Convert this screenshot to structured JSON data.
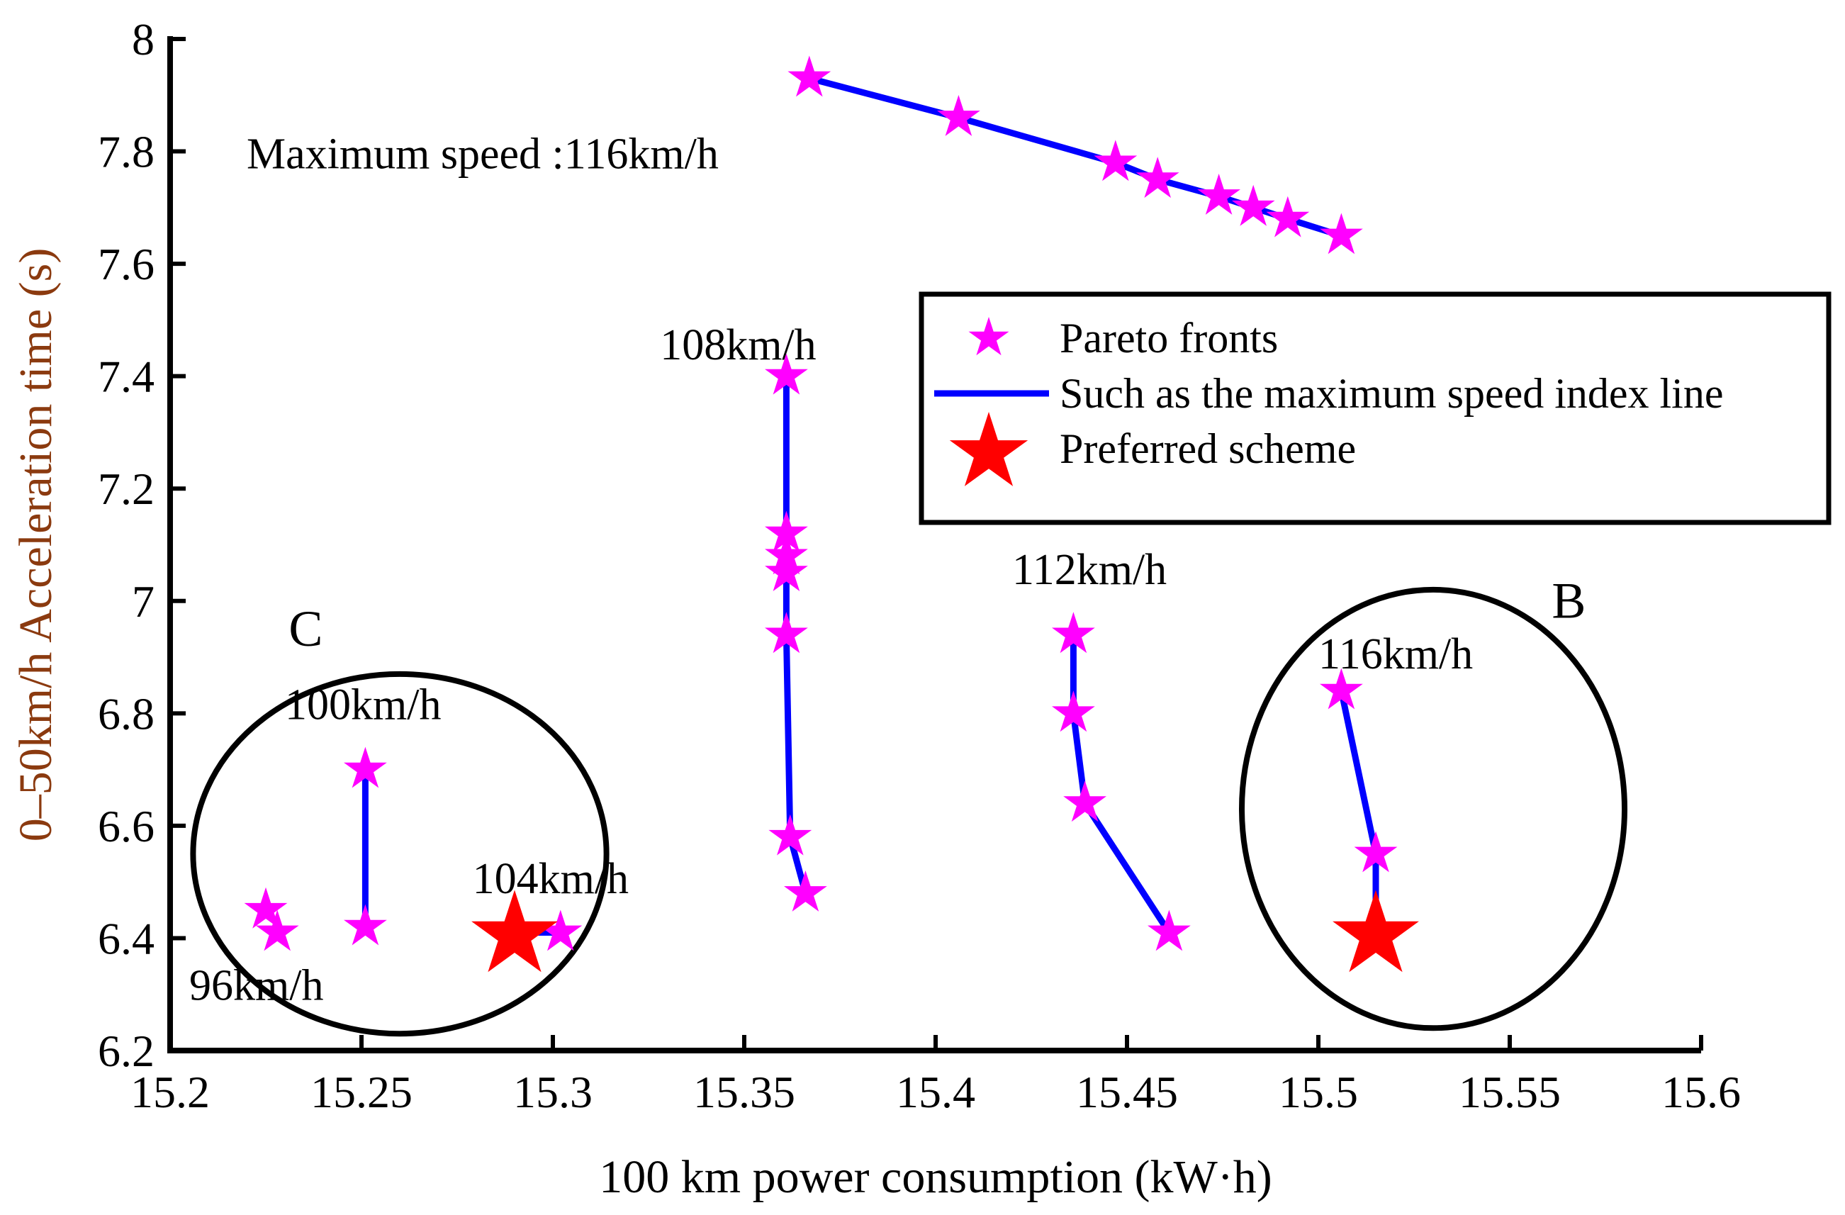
{
  "chart_data": {
    "type": "scatter",
    "title": "",
    "xlabel": "100 km power consumption (kW·h)",
    "ylabel": "0–50km/h Acceleration time (s)",
    "xlim": [
      15.2,
      15.6
    ],
    "ylim": [
      6.2,
      8.0
    ],
    "x_ticks": [
      15.2,
      15.25,
      15.3,
      15.35,
      15.4,
      15.45,
      15.5,
      15.55,
      15.6
    ],
    "x_tick_labels": [
      "15.2",
      "15.25",
      "15.3",
      "15.35",
      "15.4",
      "15.45",
      "15.5",
      "15.55",
      "15.6"
    ],
    "y_ticks": [
      6.2,
      6.4,
      6.6,
      6.8,
      7.0,
      7.2,
      7.4,
      7.6,
      7.8,
      8.0
    ],
    "y_tick_labels": [
      "6.2",
      "6.4",
      "6.6",
      "6.8",
      "7",
      "7.2",
      "7.4",
      "7.6",
      "7.8",
      "8"
    ],
    "series": [
      {
        "name": "96km/h",
        "label": "96km/h",
        "label_at": [
          15.205,
          6.29
        ],
        "line": false,
        "points": [
          [
            15.225,
            6.45
          ],
          [
            15.228,
            6.41
          ]
        ]
      },
      {
        "name": "100km/h",
        "label": "100km/h",
        "label_at": [
          15.23,
          6.79
        ],
        "line": true,
        "points": [
          [
            15.251,
            6.7
          ],
          [
            15.251,
            6.42
          ]
        ]
      },
      {
        "name": "104km/h",
        "label": "104km/h",
        "label_at": [
          15.279,
          6.48
        ],
        "line": true,
        "points": [
          [
            15.29,
            6.41
          ],
          [
            15.302,
            6.41
          ]
        ]
      },
      {
        "name": "108km/h",
        "label": "108km/h",
        "label_at": [
          15.328,
          7.43
        ],
        "line": true,
        "points": [
          [
            15.361,
            7.4
          ],
          [
            15.361,
            7.12
          ],
          [
            15.361,
            7.08
          ],
          [
            15.361,
            7.05
          ],
          [
            15.361,
            6.94
          ],
          [
            15.362,
            6.58
          ],
          [
            15.366,
            6.48
          ]
        ]
      },
      {
        "name": "112km/h",
        "label": "112km/h",
        "label_at": [
          15.42,
          7.03
        ],
        "line": true,
        "points": [
          [
            15.436,
            6.94
          ],
          [
            15.436,
            6.8
          ],
          [
            15.439,
            6.64
          ],
          [
            15.461,
            6.41
          ]
        ]
      },
      {
        "name": "116km/h (low)",
        "label": "116km/h",
        "label_at": [
          15.5,
          6.88
        ],
        "line": true,
        "points": [
          [
            15.506,
            6.84
          ],
          [
            15.515,
            6.55
          ],
          [
            15.515,
            6.41
          ]
        ]
      },
      {
        "name": "116km/h (top)",
        "label": "",
        "label_at": null,
        "line": true,
        "points": [
          [
            15.367,
            7.93
          ],
          [
            15.406,
            7.86
          ],
          [
            15.447,
            7.78
          ],
          [
            15.458,
            7.75
          ],
          [
            15.474,
            7.72
          ],
          [
            15.483,
            7.7
          ],
          [
            15.492,
            7.68
          ],
          [
            15.506,
            7.65
          ]
        ]
      }
    ],
    "preferred_schemes": [
      [
        15.29,
        6.41
      ],
      [
        15.515,
        6.41
      ]
    ],
    "annotations": [
      {
        "text": "Maximum speed :116km/h",
        "at": [
          15.22,
          7.77
        ]
      }
    ],
    "regions": [
      {
        "label": "C",
        "center": [
          15.26,
          6.55
        ],
        "radius_x": 0.054,
        "radius_y": 0.32,
        "label_at": [
          15.231,
          6.92
        ]
      },
      {
        "label": "B",
        "center": [
          15.53,
          6.63
        ],
        "radius_x": 0.05,
        "radius_y": 0.39,
        "label_at": [
          15.561,
          6.97
        ]
      }
    ],
    "legend": {
      "position": "top-right",
      "entries": [
        {
          "label": "Pareto fronts",
          "marker": "star",
          "color": "#FF00FF"
        },
        {
          "label": "Such as the maximum speed index line",
          "marker": "line",
          "color": "#0000FF"
        },
        {
          "label": "Preferred scheme",
          "marker": "big-star",
          "color": "#FF0000"
        }
      ]
    },
    "colors": {
      "pareto": "#FF00FF",
      "line": "#0000FF",
      "preferred": "#FF0000",
      "ylabel": "#8B3A0F"
    }
  }
}
